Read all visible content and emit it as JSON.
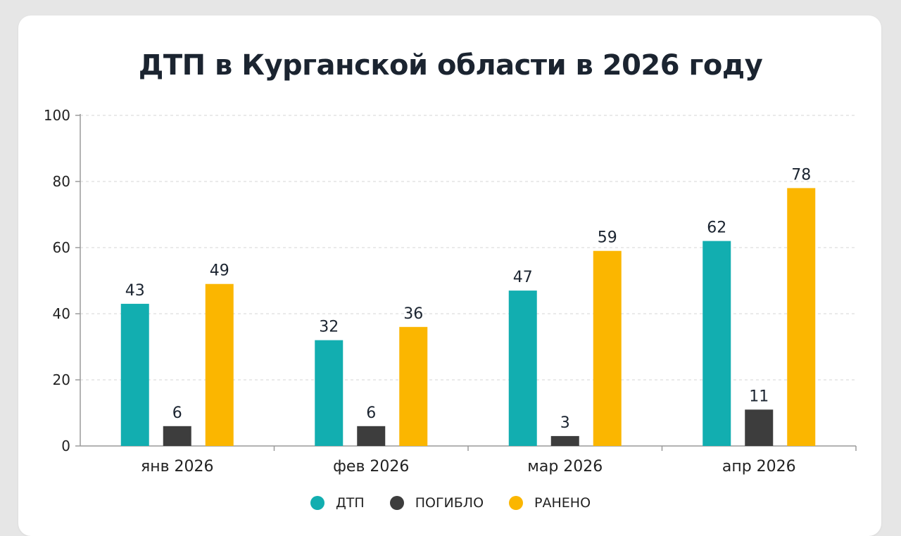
{
  "chart_data": {
    "type": "bar",
    "title": "ДТП в Курганской области в 2026 году",
    "categories": [
      "янв 2026",
      "фев 2026",
      "мар 2026",
      "апр 2026"
    ],
    "series": [
      {
        "name": "ДТП",
        "color": "#12aeb0",
        "values": [
          43,
          32,
          47,
          62
        ]
      },
      {
        "name": "ПОГИБЛО",
        "color": "#3d3d3d",
        "values": [
          6,
          6,
          3,
          11
        ]
      },
      {
        "name": "РАНЕНО",
        "color": "#fbb600",
        "values": [
          49,
          36,
          59,
          78
        ]
      }
    ],
    "ylim": [
      0,
      100
    ],
    "yticks": [
      0,
      20,
      40,
      60,
      80,
      100
    ],
    "grid": true,
    "legend_position": "bottom"
  }
}
